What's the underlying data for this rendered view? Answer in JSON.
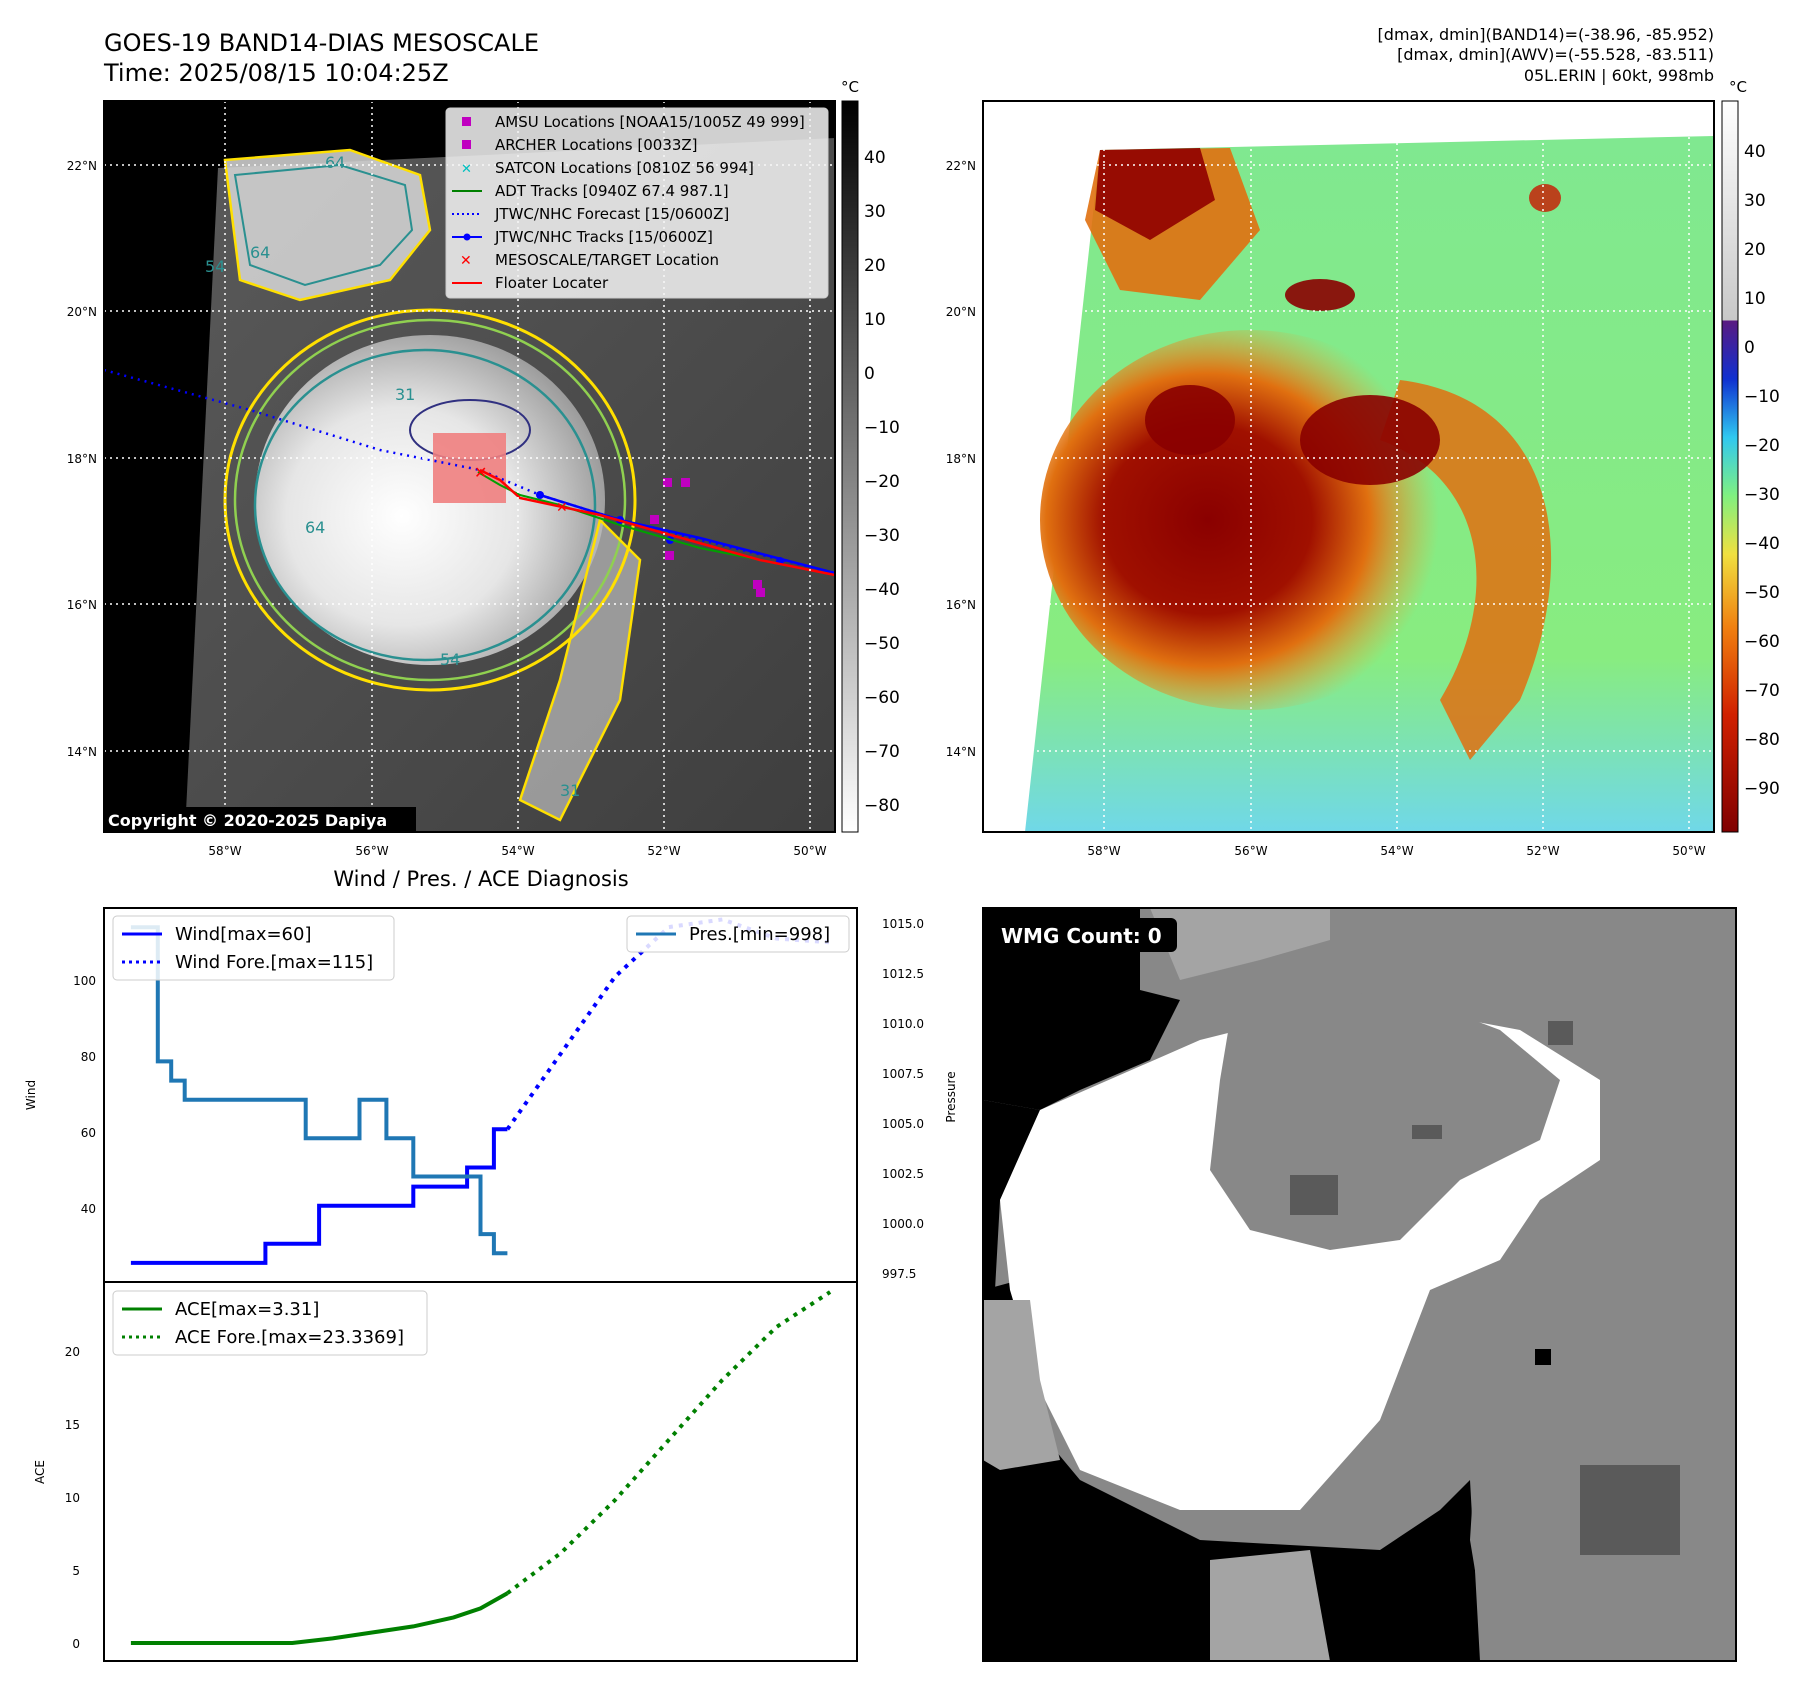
{
  "header": {
    "title_line1": "GOES-19 BAND14-DIAS MESOSCALE",
    "title_line2": "Time: 2025/08/15 10:04:25Z",
    "info_line1": "[dmax, dmin](BAND14)=(-38.96, -85.952)",
    "info_line2": "[dmax, dmin](AWV)=(-55.528, -83.511)",
    "info_line3": "05L.ERIN | 60kt, 998mb"
  },
  "map_common": {
    "lon_labels": [
      "58°W",
      "56°W",
      "54°W",
      "52°W",
      "50°W"
    ],
    "lat_labels": [
      "22°N",
      "20°N",
      "18°N",
      "16°N",
      "14°N"
    ],
    "unit": "°C"
  },
  "ir_panel": {
    "copyright": "Copyright © 2020-2025 Dapiya",
    "colorbar_ticks": [
      "40",
      "30",
      "20",
      "10",
      "0",
      "−10",
      "−20",
      "−30",
      "−40",
      "−50",
      "−60",
      "−70",
      "−80"
    ],
    "contour_labels": [
      "64",
      "64",
      "54",
      "31",
      "64",
      "54",
      "31"
    ],
    "legend": [
      {
        "label": "AMSU Locations [NOAA15/1005Z 49 999]",
        "color": "#c000c0",
        "marker": "square"
      },
      {
        "label": "ARCHER Locations [0033Z]",
        "color": "#c000c0",
        "marker": "square"
      },
      {
        "label": "SATCON Locations [0810Z 56 994]",
        "color": "#00c0c0",
        "marker": "x"
      },
      {
        "label": "ADT Tracks [0940Z 67.4 987.1]",
        "color": "#008000",
        "marker": "line"
      },
      {
        "label": "JTWC/NHC Forecast [15/0600Z]",
        "color": "#0000ff",
        "marker": "dotted"
      },
      {
        "label": "JTWC/NHC Tracks [15/0600Z]",
        "color": "#0000ff",
        "marker": "line-dot"
      },
      {
        "label": "MESOSCALE/TARGET Location",
        "color": "#ff0000",
        "marker": "x"
      },
      {
        "label": "Floater Locater",
        "color": "#ff0000",
        "marker": "line"
      }
    ]
  },
  "awv_panel": {
    "colorbar_ticks": [
      "40",
      "30",
      "20",
      "10",
      "0",
      "−10",
      "−20",
      "−30",
      "−40",
      "−50",
      "−60",
      "−70",
      "−80",
      "−90"
    ]
  },
  "wmg_panel": {
    "label": "WMG Count: 0"
  },
  "diag": {
    "title": "Wind / Pres. / ACE Diagnosis",
    "wind_ylabel": "Wind",
    "pres_ylabel": "Pressure",
    "ace_ylabel": "ACE",
    "wind_ticks": [
      "100",
      "80",
      "60",
      "40"
    ],
    "pres_ticks": [
      "1015.0",
      "1012.5",
      "1010.0",
      "1007.5",
      "1005.0",
      "1002.5",
      "1000.0",
      "997.5"
    ],
    "ace_ticks": [
      "20",
      "15",
      "10",
      "5",
      "0"
    ],
    "legend_wind": "Wind[max=60]",
    "legend_wind_fore": "Wind Fore.[max=115]",
    "legend_pres": "Pres.[min=998]",
    "legend_ace": "ACE[max=3.31]",
    "legend_ace_fore": "ACE Fore.[max=23.3369]"
  },
  "chart_data": {
    "type": "line",
    "x": [
      0,
      1,
      2,
      3,
      4,
      5,
      6,
      7,
      8,
      9,
      10,
      11,
      12,
      13,
      14,
      15,
      16,
      17,
      18,
      19,
      20,
      21,
      22,
      23,
      24,
      25,
      26,
      27,
      28
    ],
    "series": [
      {
        "name": "Wind[max=60]",
        "axis": "wind",
        "style": "solid",
        "color": "#0000ff",
        "x": [
          0,
          1,
          2,
          3,
          4,
          5,
          6,
          7,
          8,
          9,
          10,
          11,
          12,
          13,
          14,
          15,
          16,
          17,
          18,
          19,
          20,
          21,
          22,
          23,
          24,
          25,
          26,
          27,
          28
        ],
        "values": [
          25,
          25,
          25,
          25,
          25,
          25,
          25,
          25,
          25,
          25,
          30,
          30,
          30,
          30,
          40,
          40,
          40,
          40,
          40,
          40,
          40,
          45,
          45,
          45,
          45,
          50,
          50,
          60,
          60
        ]
      },
      {
        "name": "Wind Fore.[max=115]",
        "axis": "wind",
        "style": "dotted",
        "color": "#0000ff",
        "x": [
          28,
          32,
          36,
          40,
          44,
          48,
          52
        ],
        "values": [
          60,
          80,
          100,
          113,
          115,
          110,
          109
        ]
      },
      {
        "name": "Pres.[min=998]",
        "axis": "pres",
        "style": "solid",
        "color": "#1f77b4",
        "x": [
          0,
          1,
          2,
          3,
          4,
          5,
          6,
          7,
          8,
          9,
          10,
          11,
          12,
          13,
          14,
          15,
          16,
          17,
          18,
          19,
          20,
          21,
          22,
          23,
          24,
          25,
          26,
          27,
          28
        ],
        "values": [
          1015,
          1015,
          1008,
          1007,
          1006,
          1006,
          1006,
          1006,
          1006,
          1006,
          1006,
          1006,
          1006,
          1004,
          1004,
          1004,
          1004,
          1006,
          1006,
          1004,
          1004,
          1002,
          1002,
          1002,
          1002,
          1002,
          999,
          998,
          998
        ]
      },
      {
        "name": "ACE[max=3.31]",
        "axis": "ace",
        "style": "solid",
        "color": "#008000",
        "x": [
          0,
          3,
          6,
          9,
          12,
          15,
          18,
          21,
          24,
          26,
          28
        ],
        "values": [
          0,
          0,
          0,
          0,
          0,
          0.3,
          0.7,
          1.1,
          1.7,
          2.3,
          3.31
        ]
      },
      {
        "name": "ACE Fore.[max=23.3369]",
        "axis": "ace",
        "style": "dotted",
        "color": "#008000",
        "x": [
          28,
          32,
          36,
          40,
          44,
          48,
          52
        ],
        "values": [
          3.31,
          6,
          9.5,
          13.5,
          17.5,
          21,
          23.3369
        ]
      }
    ],
    "wind_ylim": [
      20,
      118
    ],
    "pres_ylim": [
      996.5,
      1016
    ],
    "ace_ylim": [
      -1.2,
      24
    ],
    "xlim": [
      -2,
      54
    ]
  }
}
